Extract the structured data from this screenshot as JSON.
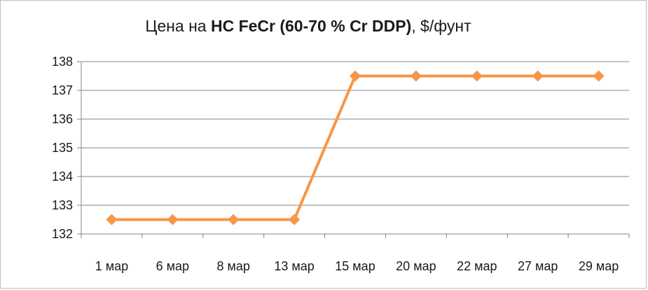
{
  "chart_data": {
    "type": "line",
    "title_prefix": "Цена на ",
    "title_bold": "HC FeCr (60-70 % Cr DDP)",
    "title_suffix": ", $/фунт",
    "categories": [
      "1 мар",
      "6 мар",
      "8 мар",
      "13 мар",
      "15 мар",
      "20 мар",
      "22 мар",
      "27 мар",
      "29 мар"
    ],
    "series": [
      {
        "values": [
          132.5,
          132.5,
          132.5,
          132.5,
          137.5,
          137.5,
          137.5,
          137.5,
          137.5
        ]
      }
    ],
    "ylim": [
      132,
      138
    ],
    "yticks": [
      132,
      133,
      134,
      135,
      136,
      137,
      138
    ],
    "grid": true,
    "legend": "none",
    "colors": {
      "line": "#f79646",
      "grid": "#868686",
      "axis": "#868686"
    }
  }
}
